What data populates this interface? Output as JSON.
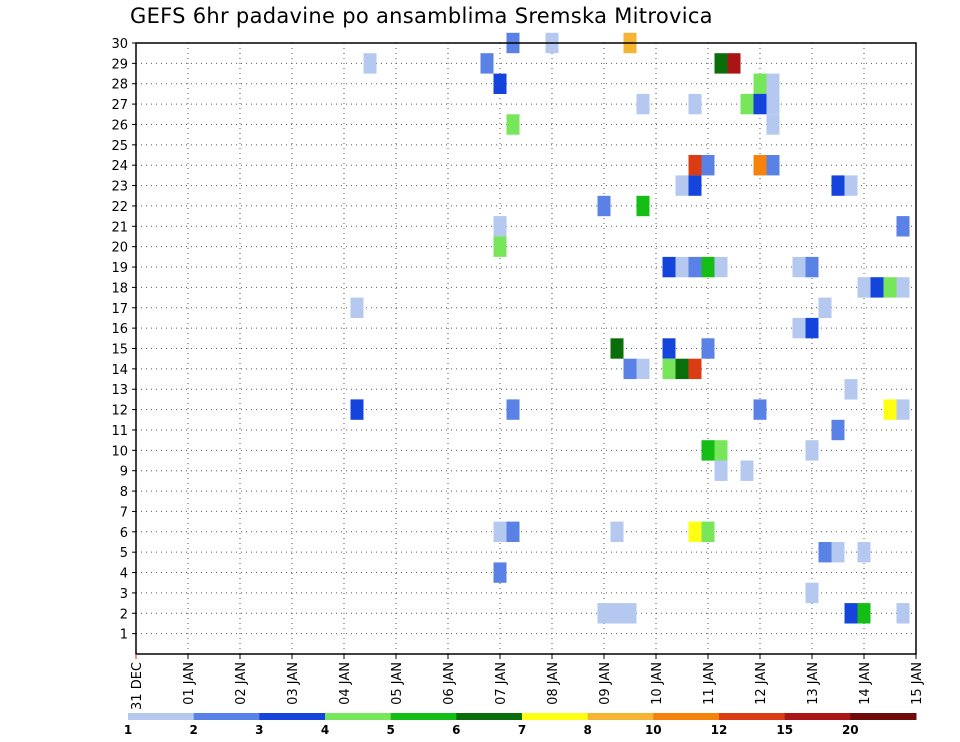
{
  "chart_data": {
    "type": "heatmap",
    "title": "GEFS 6hr padavine po ansamblima Sremska Mitrovica",
    "xlabel": "",
    "ylabel": "",
    "x_tick_labels": [
      "31 DEC",
      "01 JAN",
      "02 JAN",
      "03 JAN",
      "04 JAN",
      "05 JAN",
      "06 JAN",
      "07 JAN",
      "08 JAN",
      "09 JAN",
      "10 JAN",
      "11 JAN",
      "12 JAN",
      "13 JAN",
      "14 JAN",
      "15 JAN"
    ],
    "x_range_days": [
      0,
      15
    ],
    "y_tick_labels": [
      "1",
      "2",
      "3",
      "4",
      "5",
      "6",
      "7",
      "8",
      "9",
      "10",
      "11",
      "12",
      "13",
      "14",
      "15",
      "16",
      "17",
      "18",
      "19",
      "20",
      "21",
      "22",
      "23",
      "24",
      "25",
      "26",
      "27",
      "28",
      "29",
      "30"
    ],
    "y_range": [
      0,
      30
    ],
    "grid": "dotted",
    "legend": {
      "position": "bottom",
      "labels": [
        "1",
        "2",
        "3",
        "4",
        "5",
        "6",
        "7",
        "8",
        "10",
        "12",
        "15",
        "20"
      ],
      "colors": [
        "#b4c8f0",
        "#5a82e6",
        "#1444dc",
        "#78e65a",
        "#14be14",
        "#0a6e0a",
        "#ffff14",
        "#f5b432",
        "#f5820a",
        "#dc3c14",
        "#aa1414",
        "#6e0a0a"
      ]
    },
    "cells": [
      {
        "t": 7.25,
        "m": 30,
        "c": 1
      },
      {
        "t": 8.0,
        "m": 30,
        "c": 0
      },
      {
        "t": 9.5,
        "m": 30,
        "c": 7
      },
      {
        "t": 4.5,
        "m": 29,
        "c": 0
      },
      {
        "t": 6.75,
        "m": 29,
        "c": 1
      },
      {
        "t": 11.25,
        "m": 29,
        "c": 5
      },
      {
        "t": 11.5,
        "m": 29,
        "c": 10
      },
      {
        "t": 7.0,
        "m": 28,
        "c": 2
      },
      {
        "t": 12.0,
        "m": 28,
        "c": 3
      },
      {
        "t": 12.25,
        "m": 28,
        "c": 0
      },
      {
        "t": 9.75,
        "m": 27,
        "c": 0
      },
      {
        "t": 10.75,
        "m": 27,
        "c": 0
      },
      {
        "t": 11.75,
        "m": 27,
        "c": 3
      },
      {
        "t": 12.0,
        "m": 27,
        "c": 2
      },
      {
        "t": 12.25,
        "m": 27,
        "c": 0
      },
      {
        "t": 7.25,
        "m": 26,
        "c": 3
      },
      {
        "t": 12.25,
        "m": 26,
        "c": 0
      },
      {
        "t": 10.75,
        "m": 24,
        "c": 9
      },
      {
        "t": 11.0,
        "m": 24,
        "c": 1
      },
      {
        "t": 12.0,
        "m": 24,
        "c": 8
      },
      {
        "t": 12.25,
        "m": 24,
        "c": 1
      },
      {
        "t": 10.5,
        "m": 23,
        "c": 0
      },
      {
        "t": 10.75,
        "m": 23,
        "c": 2
      },
      {
        "t": 13.5,
        "m": 23,
        "c": 2
      },
      {
        "t": 13.75,
        "m": 23,
        "c": 0
      },
      {
        "t": 9.0,
        "m": 22,
        "c": 1
      },
      {
        "t": 9.75,
        "m": 22,
        "c": 4
      },
      {
        "t": 7.0,
        "m": 21,
        "c": 0
      },
      {
        "t": 14.75,
        "m": 21,
        "c": 1
      },
      {
        "t": 7.0,
        "m": 20,
        "c": 3
      },
      {
        "t": 10.25,
        "m": 19,
        "c": 2
      },
      {
        "t": 10.5,
        "m": 19,
        "c": 0
      },
      {
        "t": 10.75,
        "m": 19,
        "c": 1
      },
      {
        "t": 11.0,
        "m": 19,
        "c": 4
      },
      {
        "t": 11.25,
        "m": 19,
        "c": 0
      },
      {
        "t": 12.75,
        "m": 19,
        "c": 0
      },
      {
        "t": 13.0,
        "m": 19,
        "c": 1
      },
      {
        "t": 14.0,
        "m": 18,
        "c": 0
      },
      {
        "t": 14.25,
        "m": 18,
        "c": 2
      },
      {
        "t": 14.5,
        "m": 18,
        "c": 3
      },
      {
        "t": 14.75,
        "m": 18,
        "c": 0
      },
      {
        "t": 4.25,
        "m": 17,
        "c": 0
      },
      {
        "t": 13.25,
        "m": 17,
        "c": 0
      },
      {
        "t": 12.75,
        "m": 16,
        "c": 0
      },
      {
        "t": 13.0,
        "m": 16,
        "c": 2
      },
      {
        "t": 9.25,
        "m": 15,
        "c": 5
      },
      {
        "t": 10.25,
        "m": 15,
        "c": 2
      },
      {
        "t": 11.0,
        "m": 15,
        "c": 1
      },
      {
        "t": 9.5,
        "m": 14,
        "c": 1
      },
      {
        "t": 9.75,
        "m": 14,
        "c": 0
      },
      {
        "t": 10.25,
        "m": 14,
        "c": 3
      },
      {
        "t": 10.5,
        "m": 14,
        "c": 5
      },
      {
        "t": 10.75,
        "m": 14,
        "c": 9
      },
      {
        "t": 13.75,
        "m": 13,
        "c": 0
      },
      {
        "t": 4.25,
        "m": 12,
        "c": 2
      },
      {
        "t": 7.25,
        "m": 12,
        "c": 1
      },
      {
        "t": 12.0,
        "m": 12,
        "c": 1
      },
      {
        "t": 14.5,
        "m": 12,
        "c": 6
      },
      {
        "t": 14.75,
        "m": 12,
        "c": 0
      },
      {
        "t": 13.5,
        "m": 11,
        "c": 1
      },
      {
        "t": 11.0,
        "m": 10,
        "c": 4
      },
      {
        "t": 11.25,
        "m": 10,
        "c": 3
      },
      {
        "t": 13.0,
        "m": 10,
        "c": 0
      },
      {
        "t": 11.25,
        "m": 9,
        "c": 0
      },
      {
        "t": 11.75,
        "m": 9,
        "c": 0
      },
      {
        "t": 7.0,
        "m": 6,
        "c": 0
      },
      {
        "t": 7.25,
        "m": 6,
        "c": 1
      },
      {
        "t": 9.25,
        "m": 6,
        "c": 0
      },
      {
        "t": 10.75,
        "m": 6,
        "c": 6
      },
      {
        "t": 11.0,
        "m": 6,
        "c": 3
      },
      {
        "t": 13.25,
        "m": 5,
        "c": 1
      },
      {
        "t": 13.5,
        "m": 5,
        "c": 0
      },
      {
        "t": 14.0,
        "m": 5,
        "c": 0
      },
      {
        "t": 7.0,
        "m": 4,
        "c": 1
      },
      {
        "t": 13.0,
        "m": 3,
        "c": 0
      },
      {
        "t": 9.0,
        "m": 2,
        "c": 0
      },
      {
        "t": 9.25,
        "m": 2,
        "c": 0
      },
      {
        "t": 9.5,
        "m": 2,
        "c": 0
      },
      {
        "t": 13.75,
        "m": 2,
        "c": 2
      },
      {
        "t": 14.0,
        "m": 2,
        "c": 4
      },
      {
        "t": 14.75,
        "m": 2,
        "c": 0
      }
    ]
  }
}
